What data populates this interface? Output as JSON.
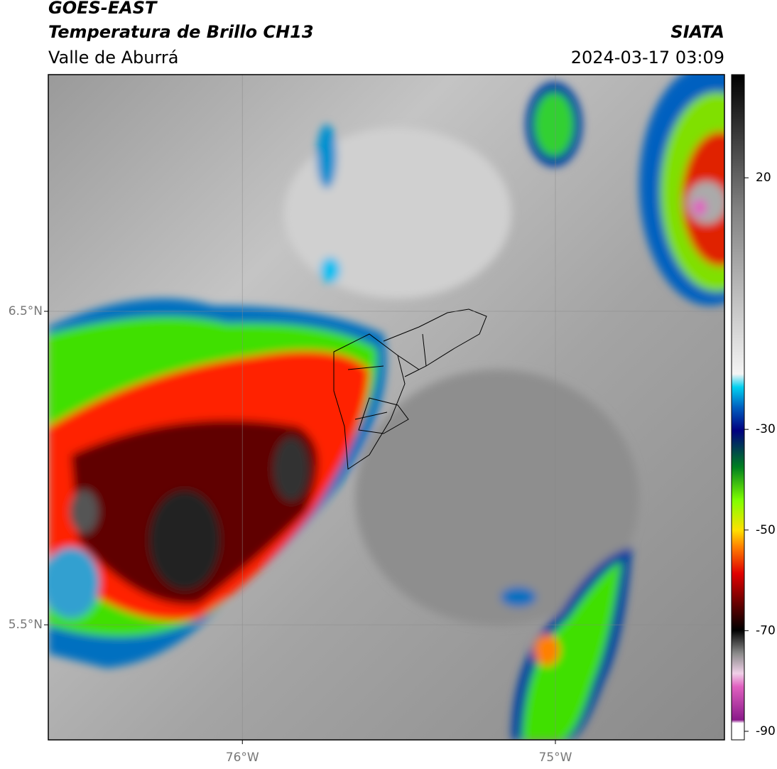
{
  "header": {
    "title": "GOES-EAST",
    "subtitle": "Temperatura de Brillo CH13",
    "source": "SIATA",
    "region": "Valle de Aburrá",
    "datetime": "2024-03-17 03:09"
  },
  "map": {
    "xlim": [
      -76.62,
      -74.46
    ],
    "ylim": [
      5.133,
      7.255
    ],
    "xticks": [
      {
        "value": -76,
        "label": "76°W"
      },
      {
        "value": -75,
        "label": "75°W"
      }
    ],
    "yticks": [
      {
        "value": 6.5,
        "label": "6.5°N"
      },
      {
        "value": 5.5,
        "label": "5.5°N"
      }
    ],
    "grid": true
  },
  "colorbar": {
    "lim": [
      -91.7,
      40.5
    ],
    "ticks": [
      20,
      -30,
      -50,
      -70,
      -90
    ]
  }
}
